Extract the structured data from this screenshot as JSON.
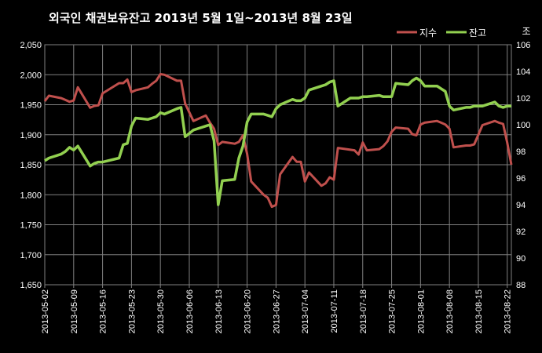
{
  "chart_data": {
    "type": "line",
    "title": "외국인 채권보유잔고  2013년 5월 1일~2013년 8월 23일",
    "y_left": {
      "ylim": [
        1650,
        2050
      ],
      "ticks": [
        "1,650",
        "1,700",
        "1,750",
        "1,800",
        "1,850",
        "1,900",
        "1,950",
        "2,000",
        "2,050"
      ]
    },
    "y_right": {
      "ylim": [
        88,
        106
      ],
      "ticks": [
        "88",
        "90",
        "92",
        "94",
        "96",
        "98",
        "100",
        "102",
        "104",
        "106"
      ],
      "unit_label": "조"
    },
    "x_range": [
      "2013-05-02",
      "2013-08-23"
    ],
    "x_ticks": [
      "2013-05-02",
      "2013-05-09",
      "2013-05-16",
      "2013-05-23",
      "2013-05-30",
      "2013-06-06",
      "2013-06-13",
      "2013-06-20",
      "2013-06-27",
      "2013-07-04",
      "2013-07-11",
      "2013-07-18",
      "2013-07-25",
      "2013-08-01",
      "2013-08-08",
      "2013-08-15",
      "2013-08-22"
    ],
    "grid": true,
    "legend_position": "top-right",
    "series": [
      {
        "name": "지수",
        "color": "#c0504d",
        "axis": "left",
        "x": [
          "2013-05-02",
          "2013-05-03",
          "2013-05-06",
          "2013-05-07",
          "2013-05-08",
          "2013-05-09",
          "2013-05-10",
          "2013-05-13",
          "2013-05-14",
          "2013-05-15",
          "2013-05-16",
          "2013-05-20",
          "2013-05-21",
          "2013-05-22",
          "2013-05-23",
          "2013-05-24",
          "2013-05-27",
          "2013-05-28",
          "2013-05-29",
          "2013-05-30",
          "2013-05-31",
          "2013-06-03",
          "2013-06-04",
          "2013-06-05",
          "2013-06-07",
          "2013-06-10",
          "2013-06-11",
          "2013-06-12",
          "2013-06-13",
          "2013-06-14",
          "2013-06-17",
          "2013-06-18",
          "2013-06-19",
          "2013-06-20",
          "2013-06-21",
          "2013-06-24",
          "2013-06-25",
          "2013-06-26",
          "2013-06-27",
          "2013-06-28",
          "2013-07-01",
          "2013-07-02",
          "2013-07-03",
          "2013-07-04",
          "2013-07-05",
          "2013-07-08",
          "2013-07-09",
          "2013-07-10",
          "2013-07-11",
          "2013-07-12",
          "2013-07-15",
          "2013-07-16",
          "2013-07-17",
          "2013-07-18",
          "2013-07-19",
          "2013-07-22",
          "2013-07-23",
          "2013-07-24",
          "2013-07-25",
          "2013-07-26",
          "2013-07-29",
          "2013-07-30",
          "2013-07-31",
          "2013-08-01",
          "2013-08-02",
          "2013-08-05",
          "2013-08-06",
          "2013-08-07",
          "2013-08-08",
          "2013-08-09",
          "2013-08-12",
          "2013-08-13",
          "2013-08-14",
          "2013-08-16",
          "2013-08-19",
          "2013-08-20",
          "2013-08-21",
          "2013-08-22",
          "2013-08-23"
        ],
        "values": [
          1956,
          1965,
          1961,
          1958,
          1955,
          1957,
          1979,
          1945,
          1948,
          1949,
          1969,
          1986,
          1986,
          1992,
          1971,
          1974,
          1979,
          1985,
          1990,
          2001,
          2000,
          1990,
          1990,
          1952,
          1923,
          1932,
          1920,
          1910,
          1883,
          1888,
          1885,
          1888,
          1899,
          1868,
          1822,
          1800,
          1795,
          1780,
          1783,
          1834,
          1863,
          1855,
          1855,
          1822,
          1837,
          1815,
          1819,
          1829,
          1825,
          1878,
          1875,
          1874,
          1867,
          1887,
          1874,
          1876,
          1881,
          1889,
          1905,
          1912,
          1910,
          1901,
          1899,
          1917,
          1920,
          1923,
          1920,
          1917,
          1910,
          1879,
          1882,
          1882,
          1884,
          1916,
          1923,
          1920,
          1918,
          1887,
          1850
        ]
      },
      {
        "name": "잔고",
        "color": "#92d050",
        "axis": "right",
        "x": [
          "2013-05-02",
          "2013-05-03",
          "2013-05-06",
          "2013-05-07",
          "2013-05-08",
          "2013-05-09",
          "2013-05-10",
          "2013-05-13",
          "2013-05-14",
          "2013-05-15",
          "2013-05-16",
          "2013-05-20",
          "2013-05-21",
          "2013-05-22",
          "2013-05-23",
          "2013-05-24",
          "2013-05-27",
          "2013-05-28",
          "2013-05-29",
          "2013-05-30",
          "2013-05-31",
          "2013-06-03",
          "2013-06-04",
          "2013-06-05",
          "2013-06-07",
          "2013-06-10",
          "2013-06-11",
          "2013-06-12",
          "2013-06-13",
          "2013-06-14",
          "2013-06-17",
          "2013-06-18",
          "2013-06-19",
          "2013-06-20",
          "2013-06-21",
          "2013-06-24",
          "2013-06-25",
          "2013-06-26",
          "2013-06-27",
          "2013-06-28",
          "2013-07-01",
          "2013-07-02",
          "2013-07-03",
          "2013-07-04",
          "2013-07-05",
          "2013-07-08",
          "2013-07-09",
          "2013-07-10",
          "2013-07-11",
          "2013-07-12",
          "2013-07-15",
          "2013-07-16",
          "2013-07-17",
          "2013-07-18",
          "2013-07-19",
          "2013-07-22",
          "2013-07-23",
          "2013-07-24",
          "2013-07-25",
          "2013-07-26",
          "2013-07-29",
          "2013-07-30",
          "2013-07-31",
          "2013-08-01",
          "2013-08-02",
          "2013-08-05",
          "2013-08-06",
          "2013-08-07",
          "2013-08-08",
          "2013-08-09",
          "2013-08-12",
          "2013-08-13",
          "2013-08-14",
          "2013-08-16",
          "2013-08-19",
          "2013-08-20",
          "2013-08-21",
          "2013-08-22",
          "2013-08-23"
        ],
        "values": [
          97.3,
          97.5,
          97.8,
          98.0,
          98.3,
          98.1,
          98.4,
          96.9,
          97.1,
          97.2,
          97.2,
          97.5,
          98.5,
          98.6,
          99.9,
          100.5,
          100.4,
          100.5,
          100.6,
          100.9,
          100.8,
          101.2,
          101.3,
          99.1,
          99.6,
          99.9,
          100.0,
          98.8,
          94.0,
          95.8,
          95.9,
          97.5,
          98.4,
          100.2,
          100.8,
          100.8,
          100.7,
          100.6,
          101.2,
          101.5,
          101.9,
          101.8,
          101.8,
          102.0,
          102.6,
          102.9,
          103.0,
          103.2,
          103.3,
          101.4,
          102.0,
          102.0,
          102.0,
          102.1,
          102.1,
          102.2,
          102.1,
          102.1,
          102.1,
          103.1,
          103.0,
          103.3,
          103.5,
          103.3,
          102.9,
          102.9,
          102.7,
          102.5,
          101.4,
          101.1,
          101.3,
          101.3,
          101.4,
          101.4,
          101.7,
          101.4,
          101.3,
          101.4,
          101.4
        ]
      }
    ]
  }
}
